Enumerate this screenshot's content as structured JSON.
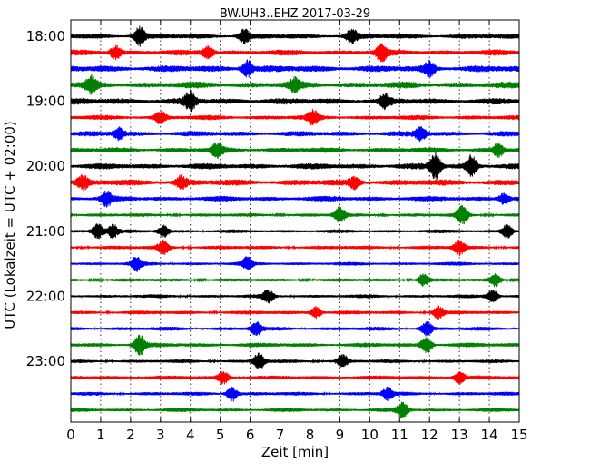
{
  "chart_data": {
    "type": "line",
    "title": "BW.UH3..EHZ 2017-03-29",
    "xlabel": "Zeit  [min]",
    "ylabel": "UTC (Lokalzeit = UTC + 02:00)",
    "xlim": [
      0,
      15
    ],
    "x_ticks": [
      "0",
      "1",
      "2",
      "3",
      "4",
      "5",
      "6",
      "7",
      "8",
      "9",
      "10",
      "11",
      "12",
      "13",
      "14",
      "15"
    ],
    "y_tick_labels": [
      "18:00",
      "19:00",
      "20:00",
      "21:00",
      "22:00",
      "23:00"
    ],
    "grid_x": true,
    "color_cycle": [
      "#000000",
      "#ff0000",
      "#0000ff",
      "#008000"
    ],
    "traces": [
      {
        "start": "18:00",
        "amplitude": 0.55,
        "events": [
          [
            2.3,
            1.6
          ],
          [
            5.8,
            1.2
          ],
          [
            9.4,
            1.3
          ]
        ]
      },
      {
        "start": "18:15",
        "amplitude": 0.6,
        "events": [
          [
            1.5,
            1.2
          ],
          [
            4.6,
            1.1
          ],
          [
            10.4,
            1.4
          ]
        ]
      },
      {
        "start": "18:30",
        "amplitude": 0.8,
        "events": [
          [
            5.9,
            1.5
          ],
          [
            12.0,
            1.2
          ]
        ]
      },
      {
        "start": "18:45",
        "amplitude": 0.75,
        "events": [
          [
            0.7,
            1.3
          ],
          [
            7.5,
            1.0
          ]
        ]
      },
      {
        "start": "19:00",
        "amplitude": 0.75,
        "events": [
          [
            4.0,
            1.6
          ],
          [
            10.5,
            1.1
          ]
        ]
      },
      {
        "start": "19:15",
        "amplitude": 0.45,
        "events": [
          [
            3.0,
            1.1
          ],
          [
            8.1,
            1.2
          ]
        ]
      },
      {
        "start": "19:30",
        "amplitude": 0.55,
        "events": [
          [
            1.6,
            1.0
          ],
          [
            11.7,
            1.1
          ]
        ]
      },
      {
        "start": "19:45",
        "amplitude": 0.55,
        "events": [
          [
            4.9,
            1.2
          ],
          [
            14.3,
            1.1
          ]
        ]
      },
      {
        "start": "20:00",
        "amplitude": 0.65,
        "events": [
          [
            12.2,
            2.2
          ],
          [
            13.4,
            1.9
          ]
        ]
      },
      {
        "start": "20:15",
        "amplitude": 0.7,
        "events": [
          [
            0.4,
            1.2
          ],
          [
            3.7,
            1.1
          ],
          [
            9.5,
            1.0
          ]
        ]
      },
      {
        "start": "20:30",
        "amplitude": 0.55,
        "events": [
          [
            1.2,
            1.3
          ],
          [
            14.5,
            1.0
          ]
        ]
      },
      {
        "start": "20:45",
        "amplitude": 0.25,
        "events": [
          [
            9.0,
            1.4
          ],
          [
            13.1,
            1.6
          ]
        ]
      },
      {
        "start": "21:00",
        "amplitude": 0.25,
        "events": [
          [
            0.9,
            1.4
          ],
          [
            1.4,
            1.2
          ],
          [
            3.1,
            1.1
          ],
          [
            14.6,
            1.2
          ]
        ]
      },
      {
        "start": "21:15",
        "amplitude": 0.3,
        "events": [
          [
            3.1,
            1.2
          ],
          [
            13.0,
            1.3
          ]
        ]
      },
      {
        "start": "21:30",
        "amplitude": 0.25,
        "events": [
          [
            2.2,
            1.2
          ],
          [
            5.9,
            1.1
          ]
        ]
      },
      {
        "start": "21:45",
        "amplitude": 0.22,
        "events": [
          [
            11.8,
            1.1
          ],
          [
            14.2,
            1.1
          ]
        ]
      },
      {
        "start": "22:00",
        "amplitude": 0.25,
        "events": [
          [
            6.6,
            1.1
          ],
          [
            14.1,
            1.2
          ]
        ]
      },
      {
        "start": "22:15",
        "amplitude": 0.3,
        "events": [
          [
            8.2,
            1.1
          ],
          [
            12.3,
            1.1
          ]
        ]
      },
      {
        "start": "22:30",
        "amplitude": 0.3,
        "events": [
          [
            6.2,
            1.2
          ],
          [
            11.9,
            1.3
          ]
        ]
      },
      {
        "start": "22:45",
        "amplitude": 0.4,
        "events": [
          [
            2.3,
            1.8
          ],
          [
            11.9,
            1.5
          ]
        ]
      },
      {
        "start": "23:00",
        "amplitude": 0.25,
        "events": [
          [
            6.3,
            1.5
          ],
          [
            9.1,
            1.1
          ]
        ]
      },
      {
        "start": "23:15",
        "amplitude": 0.3,
        "events": [
          [
            5.1,
            1.1
          ],
          [
            13.0,
            1.1
          ]
        ]
      },
      {
        "start": "23:30",
        "amplitude": 0.3,
        "events": [
          [
            5.4,
            1.3
          ],
          [
            10.6,
            1.1
          ]
        ]
      },
      {
        "start": "23:45",
        "amplitude": 0.3,
        "events": [
          [
            11.1,
            1.3
          ]
        ]
      }
    ]
  }
}
